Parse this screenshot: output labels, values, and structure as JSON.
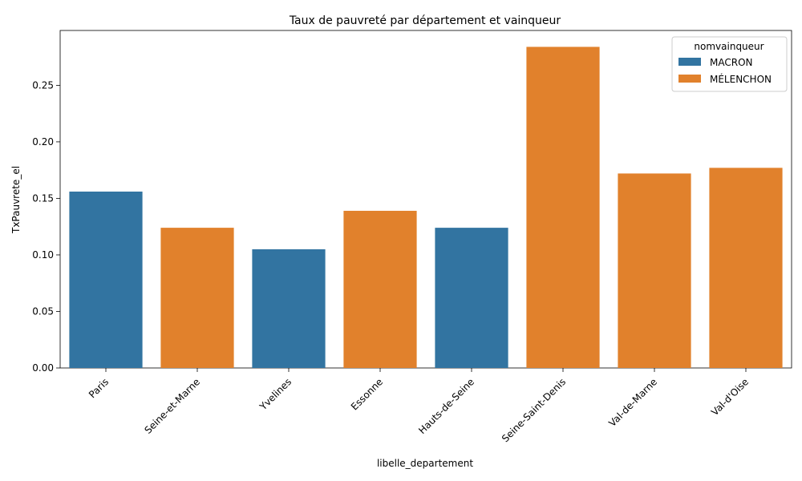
{
  "chart_data": {
    "type": "bar",
    "title": "Taux de pauvreté par département et vainqueur",
    "xlabel": "libelle_departement",
    "ylabel": "TxPauvrete_el",
    "ylim": [
      0,
      0.2985
    ],
    "yticks": [
      "0.00",
      "0.05",
      "0.10",
      "0.15",
      "0.20",
      "0.25"
    ],
    "categories": [
      "Paris",
      "Seine-et-Marne",
      "Yvelines",
      "Essonne",
      "Hauts-de-Seine",
      "Seine-Saint-Denis",
      "Val-de-Marne",
      "Val-d'Oise"
    ],
    "values": [
      0.156,
      0.124,
      0.105,
      0.139,
      0.124,
      0.284,
      0.172,
      0.177
    ],
    "winner": [
      "MACRON",
      "MÉLENCHON",
      "MACRON",
      "MÉLENCHON",
      "MACRON",
      "MÉLENCHON",
      "MÉLENCHON",
      "MÉLENCHON"
    ],
    "legend": {
      "title": "nomvainqueur",
      "placement": "top-right",
      "entries": [
        {
          "name": "MACRON",
          "color": "#3274a1"
        },
        {
          "name": "MÉLENCHON",
          "color": "#e1812c"
        }
      ]
    },
    "grid": false
  }
}
